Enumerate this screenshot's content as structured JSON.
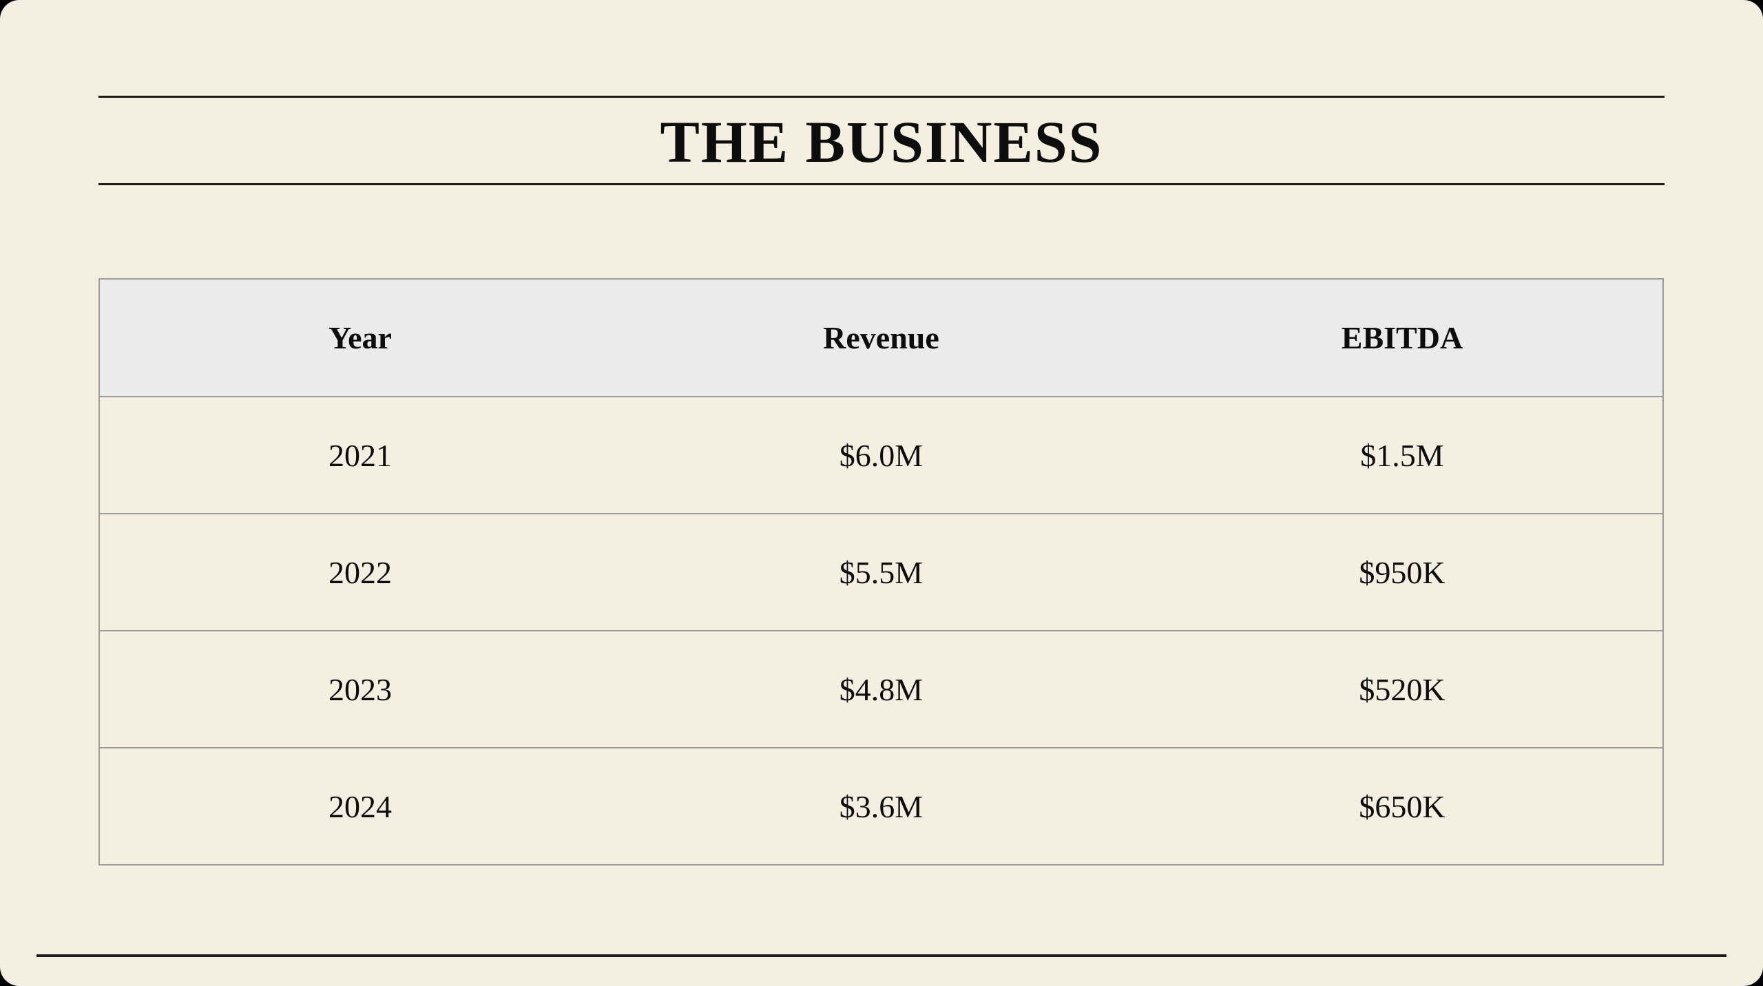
{
  "page": {
    "title": "THE BUSINESS"
  },
  "table": {
    "headers": [
      "Year",
      "Revenue",
      "EBITDA"
    ],
    "rows": [
      {
        "year": "2021",
        "revenue": "$6.0M",
        "ebitda": "$1.5M"
      },
      {
        "year": "2022",
        "revenue": "$5.5M",
        "ebitda": "$950K"
      },
      {
        "year": "2023",
        "revenue": "$4.8M",
        "ebitda": "$520K"
      },
      {
        "year": "2024",
        "revenue": "$3.6M",
        "ebitda": "$650K"
      }
    ]
  },
  "colors": {
    "slide_background": "#F5EFE2",
    "outer_background": "#000000",
    "header_row_background": "#EBEBEB",
    "table_border": "#9c9c98",
    "rule_color": "#1b1b18",
    "text_color": "#0d0d0d"
  },
  "chart_data": {
    "type": "table",
    "title": "THE BUSINESS",
    "columns": [
      "Year",
      "Revenue",
      "EBITDA"
    ],
    "rows": [
      [
        "2021",
        "$6.0M",
        "$1.5M"
      ],
      [
        "2022",
        "$5.5M",
        "$950K"
      ],
      [
        "2023",
        "$4.8M",
        "$520K"
      ],
      [
        "2024",
        "$3.6M",
        "$650K"
      ]
    ],
    "revenue_usd": [
      6000000,
      5500000,
      4800000,
      3600000
    ],
    "ebitda_usd": [
      1500000,
      950000,
      520000,
      650000
    ]
  }
}
